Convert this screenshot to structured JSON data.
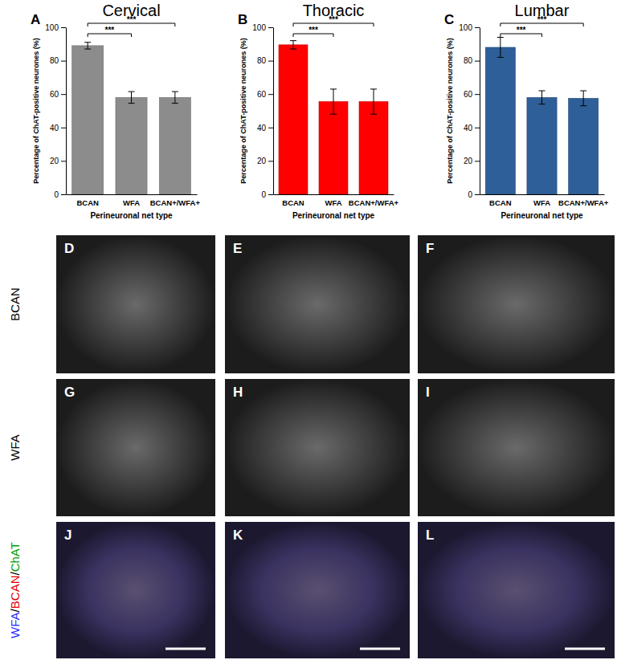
{
  "chart_data": [
    {
      "type": "bar",
      "panel": "A",
      "title": "Cervical",
      "x_label": "Perineuronal net type",
      "y_label": "Percentage of ChAT-positive neurones (%)",
      "categories": [
        "BCAN",
        "WFA",
        "BCAN+/WFA+"
      ],
      "values": [
        89,
        58,
        58
      ],
      "errors": [
        2,
        3.5,
        3.5
      ],
      "color": "#8c8c8c",
      "ylim": [
        0,
        100
      ],
      "yticks": [
        0,
        20,
        40,
        60,
        80,
        100
      ],
      "significance": [
        {
          "from": "BCAN",
          "to": "WFA",
          "label": "***"
        },
        {
          "from": "BCAN",
          "to": "BCAN+/WFA+",
          "label": "***"
        }
      ]
    },
    {
      "type": "bar",
      "panel": "B",
      "title": "Thoracic",
      "x_label": "Perineuronal net type",
      "y_label": "Percentage of ChAT-positive neurones (%)",
      "categories": [
        "BCAN",
        "WFA",
        "BCAN+/WFA+"
      ],
      "values": [
        89.5,
        55.5,
        55.5
      ],
      "errors": [
        2.5,
        7.5,
        7.5
      ],
      "color": "#ff0000",
      "ylim": [
        0,
        100
      ],
      "yticks": [
        0,
        20,
        40,
        60,
        80,
        100
      ],
      "significance": [
        {
          "from": "BCAN",
          "to": "WFA",
          "label": "***"
        },
        {
          "from": "BCAN",
          "to": "BCAN+/WFA+",
          "label": "***"
        }
      ]
    },
    {
      "type": "bar",
      "panel": "C",
      "title": "Lumbar",
      "x_label": "Perineuronal net type",
      "y_label": "Percentage of ChAT-positive neurones (%)",
      "categories": [
        "BCAN",
        "WFA",
        "BCAN+/WFA+"
      ],
      "values": [
        88,
        58,
        57.5
      ],
      "errors": [
        6,
        4,
        4.5
      ],
      "color": "#2e5f98",
      "ylim": [
        0,
        100
      ],
      "yticks": [
        0,
        20,
        40,
        60,
        80,
        100
      ],
      "significance": [
        {
          "from": "BCAN",
          "to": "WFA",
          "label": "***"
        },
        {
          "from": "BCAN",
          "to": "BCAN+/WFA+",
          "label": "***"
        }
      ]
    }
  ],
  "image_panels": {
    "row_labels": [
      {
        "parts": [
          {
            "text": "BCAN",
            "color": "#000000"
          }
        ]
      },
      {
        "parts": [
          {
            "text": "WFA",
            "color": "#000000"
          }
        ]
      },
      {
        "parts": [
          {
            "text": "WFA",
            "color": "#2b2bff"
          },
          {
            "text": "/",
            "color": "#000000"
          },
          {
            "text": "BCAN",
            "color": "#e00000"
          },
          {
            "text": "/",
            "color": "#000000"
          },
          {
            "text": "ChAT",
            "color": "#00a000"
          }
        ]
      }
    ],
    "panels": [
      {
        "label": "D"
      },
      {
        "label": "E"
      },
      {
        "label": "F"
      },
      {
        "label": "G"
      },
      {
        "label": "H"
      },
      {
        "label": "I"
      },
      {
        "label": "J"
      },
      {
        "label": "K"
      },
      {
        "label": "L"
      }
    ]
  }
}
